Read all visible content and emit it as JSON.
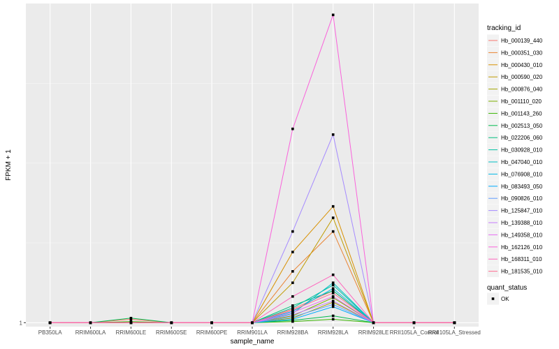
{
  "chart_data": {
    "type": "line",
    "xlabel": "sample_name",
    "ylabel": "FPKM + 1",
    "categories": [
      "PB350LA",
      "RRIM600LA",
      "RRIM600LE",
      "RRIM600SE",
      "RRIM600PE",
      "RRIM901LA",
      "RRIM928BA",
      "RRIM928LA",
      "RRIM928LE",
      "RRII105LA_Control",
      "RRII105LA_Stressed"
    ],
    "y_tick_labels": [
      {
        "value": 1,
        "label": "1"
      }
    ],
    "ylim": [
      0.65,
      29
    ],
    "grid": true,
    "legend": {
      "title": "tracking_id",
      "placement": "right"
    },
    "point_legend": {
      "title": "quant_status",
      "entries": [
        "OK"
      ]
    },
    "series": [
      {
        "name": "Hb_000139_440",
        "color": "#F8766D",
        "values": [
          1,
          1,
          1.3,
          1,
          1,
          1,
          2.2,
          3.8,
          1,
          1,
          1
        ]
      },
      {
        "name": "Hb_000351_030",
        "color": "#EA8331",
        "values": [
          1,
          1,
          1,
          1,
          1,
          1,
          5.5,
          9.0,
          1,
          1,
          1
        ]
      },
      {
        "name": "Hb_000430_010",
        "color": "#D89000",
        "values": [
          1,
          1,
          1,
          1,
          1,
          1,
          7.2,
          11.2,
          1,
          1,
          1
        ]
      },
      {
        "name": "Hb_000590_020",
        "color": "#C09B00",
        "values": [
          1,
          1,
          1,
          1,
          1,
          1,
          4.5,
          10.2,
          1,
          1,
          1
        ]
      },
      {
        "name": "Hb_000876_040",
        "color": "#A3A500",
        "values": [
          1,
          1,
          1,
          1,
          1,
          1,
          1.4,
          2.8,
          1,
          1,
          1
        ]
      },
      {
        "name": "Hb_001110_020",
        "color": "#7CAE00",
        "values": [
          1,
          1,
          1,
          1,
          1,
          1,
          1.6,
          3.2,
          1,
          1,
          1
        ]
      },
      {
        "name": "Hb_001143_260",
        "color": "#39B600",
        "values": [
          1,
          1,
          1.1,
          1,
          1,
          1,
          1.1,
          1.3,
          1,
          1,
          1
        ]
      },
      {
        "name": "Hb_002513_050",
        "color": "#00BB4E",
        "values": [
          1,
          1,
          1.4,
          1,
          1,
          1,
          1.2,
          1.6,
          1,
          1,
          1
        ]
      },
      {
        "name": "Hb_022206_060",
        "color": "#00BF7D",
        "values": [
          1,
          1,
          1,
          1,
          1,
          1,
          2.5,
          3.8,
          1,
          1,
          1
        ]
      },
      {
        "name": "Hb_030928_010",
        "color": "#00C1A3",
        "values": [
          1,
          1,
          1,
          1,
          1,
          1,
          2.3,
          4.3,
          1,
          1,
          1
        ]
      },
      {
        "name": "Hb_047040_010",
        "color": "#00BFC4",
        "values": [
          1,
          1,
          1,
          1,
          1,
          1,
          1.8,
          4.5,
          1,
          1,
          1
        ]
      },
      {
        "name": "Hb_076908_010",
        "color": "#00B8E5",
        "values": [
          1,
          1,
          1,
          1,
          1,
          1,
          2.0,
          4.0,
          1,
          1,
          1
        ]
      },
      {
        "name": "Hb_083493_050",
        "color": "#00ABFD",
        "values": [
          1,
          1,
          1,
          1,
          1,
          1,
          1.3,
          2.4,
          1,
          1,
          1
        ]
      },
      {
        "name": "Hb_090826_010",
        "color": "#619CFF",
        "values": [
          1,
          1,
          1,
          1,
          1,
          1,
          1.5,
          2.6,
          1,
          1,
          1
        ]
      },
      {
        "name": "Hb_125847_010",
        "color": "#A58AFF",
        "values": [
          1,
          1,
          1,
          1,
          1,
          1,
          9.0,
          17.5,
          1,
          1,
          1
        ]
      },
      {
        "name": "Hb_139388_010",
        "color": "#C77CFF",
        "values": [
          1,
          1,
          1,
          1,
          1,
          1,
          1.7,
          2.9,
          1,
          1,
          1
        ]
      },
      {
        "name": "Hb_149358_010",
        "color": "#E76BF3",
        "values": [
          1,
          1,
          1,
          1,
          1,
          1,
          1.9,
          3.3,
          1,
          1,
          1
        ]
      },
      {
        "name": "Hb_162126_010",
        "color": "#FA62DB",
        "values": [
          1,
          1,
          1,
          1,
          1,
          1,
          18.0,
          28.0,
          1,
          1,
          1
        ]
      },
      {
        "name": "Hb_168311_010",
        "color": "#FF62BC",
        "values": [
          1,
          1,
          1,
          1,
          1,
          1,
          3.3,
          5.2,
          1,
          1,
          1
        ]
      },
      {
        "name": "Hb_181535_010",
        "color": "#FF6C91",
        "values": [
          1,
          1,
          1,
          1,
          1,
          1,
          2.1,
          3.6,
          1,
          1,
          1
        ]
      }
    ]
  }
}
